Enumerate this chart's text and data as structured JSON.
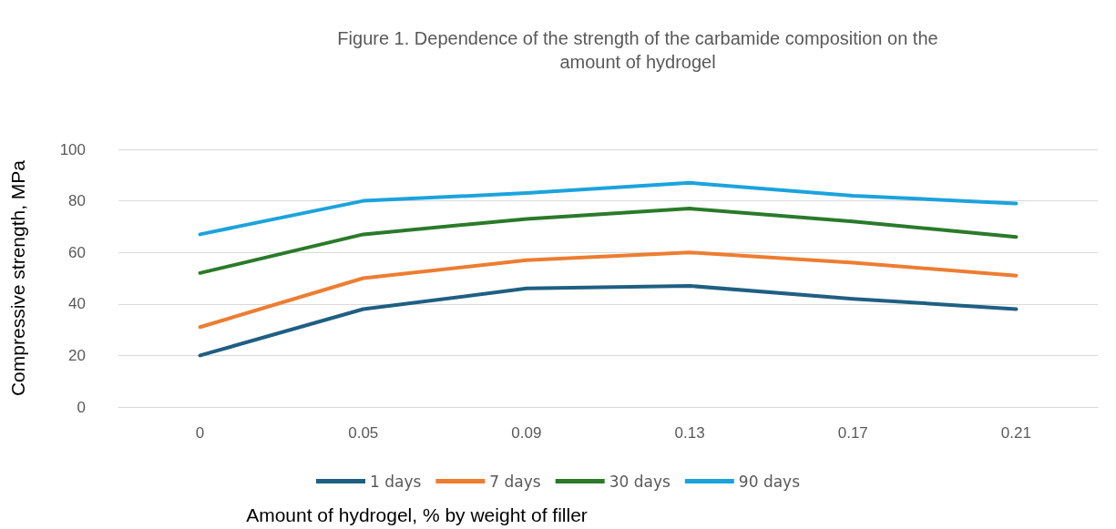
{
  "chart_data": {
    "type": "line",
    "title": "Figure 1. Dependence of the strength of the carbamide composition on the\namount of hydrogel",
    "xlabel": "Amount of hydrogel, % by weight of filler",
    "ylabel": "Compressive strength, MPa",
    "categories": [
      "0",
      "0.05",
      "0.09",
      "0.13",
      "0.17",
      "0.21"
    ],
    "series": [
      {
        "name": "1 days",
        "color": "#1f5f82",
        "values": [
          20,
          38,
          46,
          47,
          42,
          38
        ]
      },
      {
        "name": "7 days",
        "color": "#ed7d31",
        "values": [
          31,
          50,
          57,
          60,
          56,
          51
        ]
      },
      {
        "name": "30 days",
        "color": "#2a7a2a",
        "values": [
          52,
          67,
          73,
          77,
          72,
          66
        ]
      },
      {
        "name": "90 days",
        "color": "#1ca3dc",
        "values": [
          67,
          80,
          83,
          87,
          82,
          79
        ]
      }
    ],
    "ylim": [
      0,
      100
    ],
    "yticks": [
      0,
      20,
      40,
      60,
      80,
      100
    ],
    "grid": "y",
    "legend": "bottom",
    "marker": "none",
    "line_style": "solid"
  }
}
